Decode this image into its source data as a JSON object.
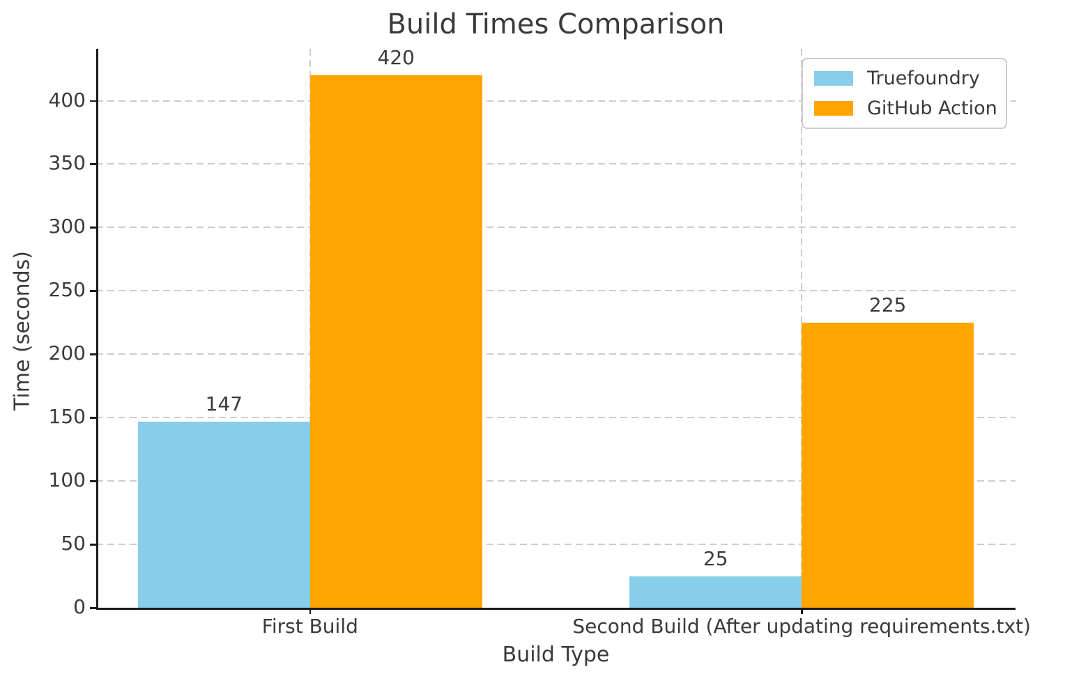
{
  "chart_data": {
    "type": "bar",
    "title": "Build Times Comparison",
    "xlabel": "Build Type",
    "ylabel": "Time (seconds)",
    "categories": [
      "First Build",
      "Second Build (After updating requirements.txt)"
    ],
    "series": [
      {
        "name": "Truefoundry",
        "color": "#87CEEB",
        "values": [
          147,
          25
        ]
      },
      {
        "name": "GitHub Action",
        "color": "#FFA500",
        "values": [
          420,
          225
        ]
      }
    ],
    "bar_labels": [
      [
        "147",
        "25"
      ],
      [
        "420",
        "225"
      ]
    ],
    "yticks": [
      0,
      50,
      100,
      150,
      200,
      250,
      300,
      350,
      400
    ],
    "ytick_labels": [
      "0",
      "50",
      "100",
      "150",
      "200",
      "250",
      "300",
      "350",
      "400"
    ],
    "ylim": [
      0,
      441
    ],
    "xlim": [
      -0.435,
      1.435
    ],
    "bar_width": 0.35,
    "grid": "dashed gray, horizontal and vertical",
    "legend_position": "upper right",
    "colors": {
      "truefoundry": "#87CEEB",
      "github_action": "#FFA500",
      "text": "#3a3a3a",
      "grid": "#cdcdcd",
      "spine": "#1a1a1a",
      "legend_border": "#cccccc",
      "background": "#ffffff"
    }
  }
}
